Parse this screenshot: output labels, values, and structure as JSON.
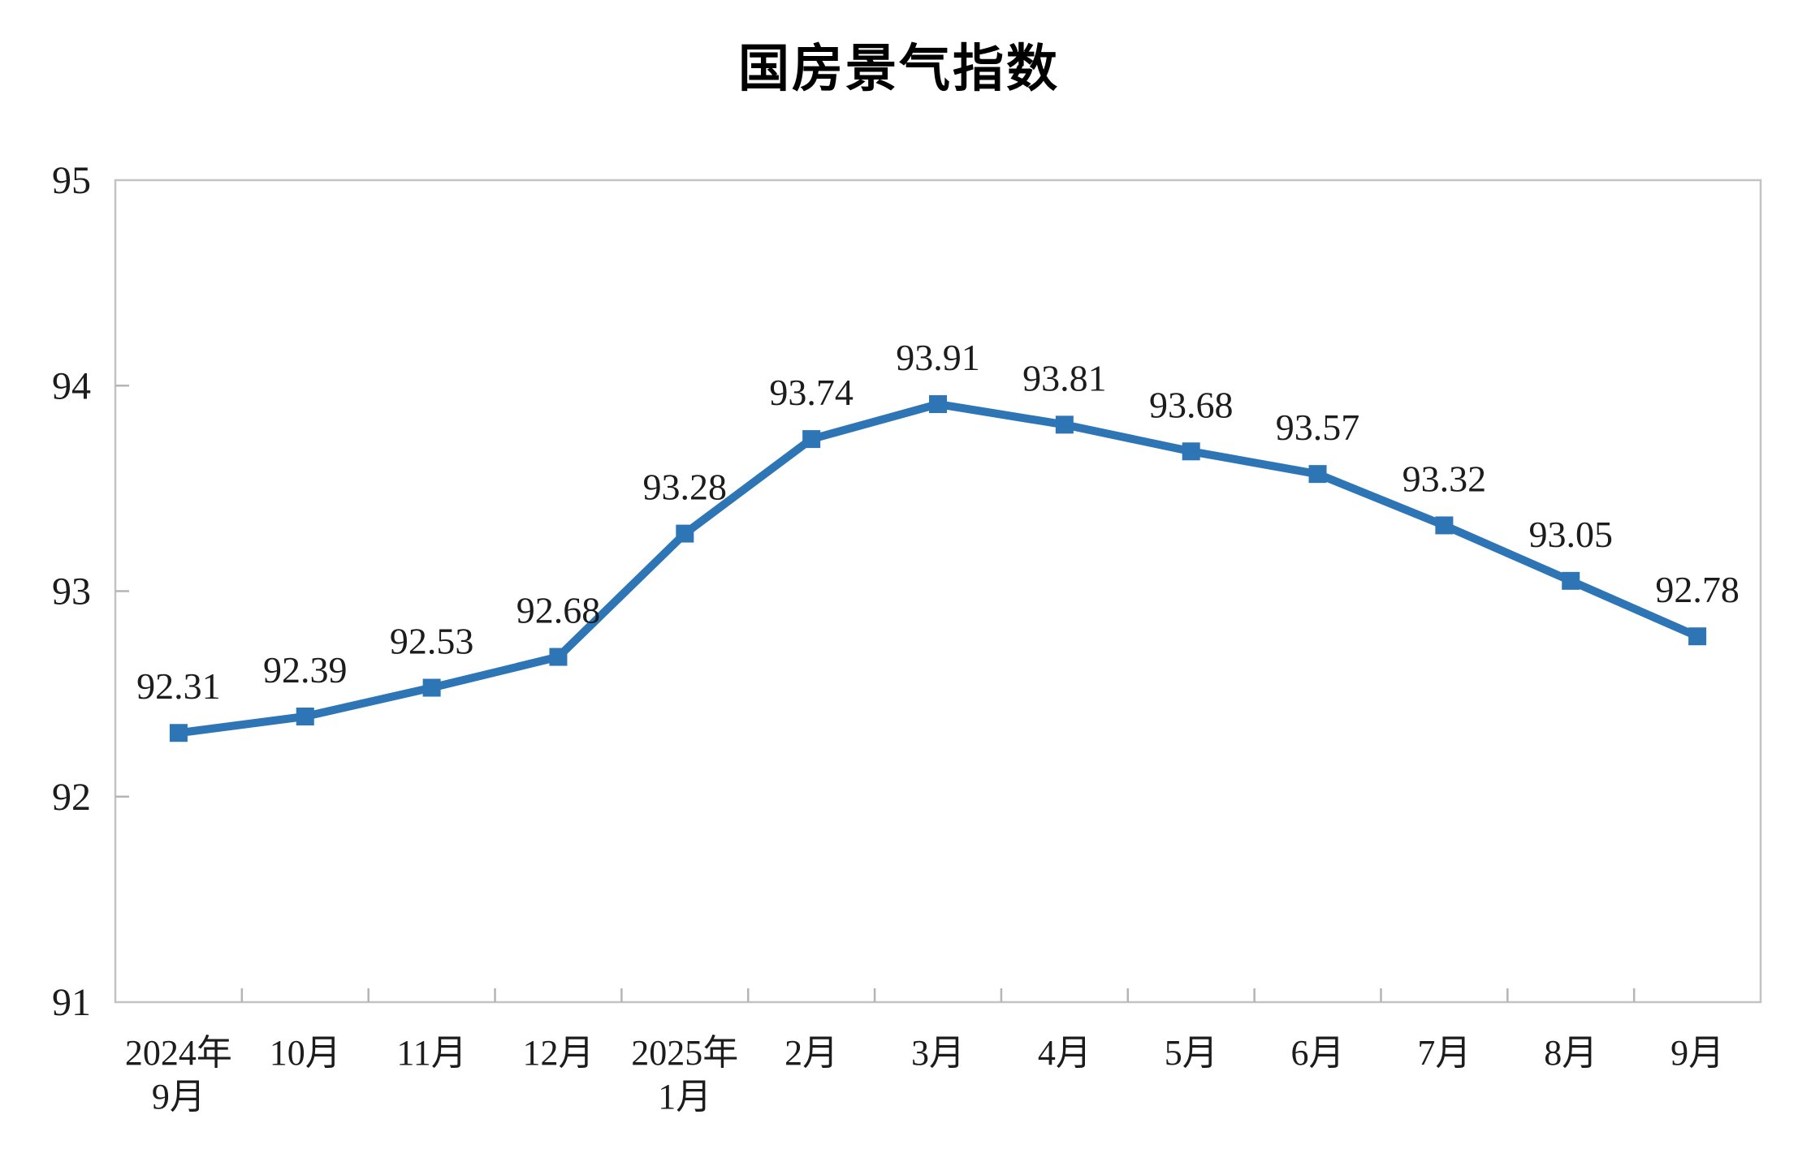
{
  "chart_data": {
    "type": "line",
    "title": "国房景气指数",
    "xlabel": "",
    "ylabel": "",
    "categories": [
      [
        "2024年",
        "9月"
      ],
      [
        "10月"
      ],
      [
        "11月"
      ],
      [
        "12月"
      ],
      [
        "2025年",
        "1月"
      ],
      [
        "2月"
      ],
      [
        "3月"
      ],
      [
        "4月"
      ],
      [
        "5月"
      ],
      [
        "6月"
      ],
      [
        "7月"
      ],
      [
        "8月"
      ],
      [
        "9月"
      ]
    ],
    "series": [
      {
        "name": "国房景气指数",
        "values": [
          92.31,
          92.39,
          92.53,
          92.68,
          93.28,
          93.74,
          93.91,
          93.81,
          93.68,
          93.57,
          93.32,
          93.05,
          92.78
        ],
        "data_labels": [
          "92.31",
          "92.39",
          "92.53",
          "92.68",
          "93.28",
          "93.74",
          "93.91",
          "93.81",
          "93.68",
          "93.57",
          "93.32",
          "93.05",
          "92.78"
        ]
      }
    ],
    "ylim": [
      91,
      95
    ],
    "yticks": [
      91,
      92,
      93,
      94,
      95
    ],
    "ytick_labels": [
      "91",
      "92",
      "93",
      "94",
      "95"
    ],
    "grid": false,
    "legend_position": "none",
    "marker_shape": "square",
    "label_position": "above",
    "colors": {
      "line": "#2E75B6",
      "marker": "#2E75B6",
      "label_text": "#1C1C1C",
      "axis_text": "#1C1C1C",
      "frame": "#C3C3C3",
      "tick": "#B5B5B5",
      "title_text": "#000000",
      "background": "#FFFFFF"
    }
  }
}
